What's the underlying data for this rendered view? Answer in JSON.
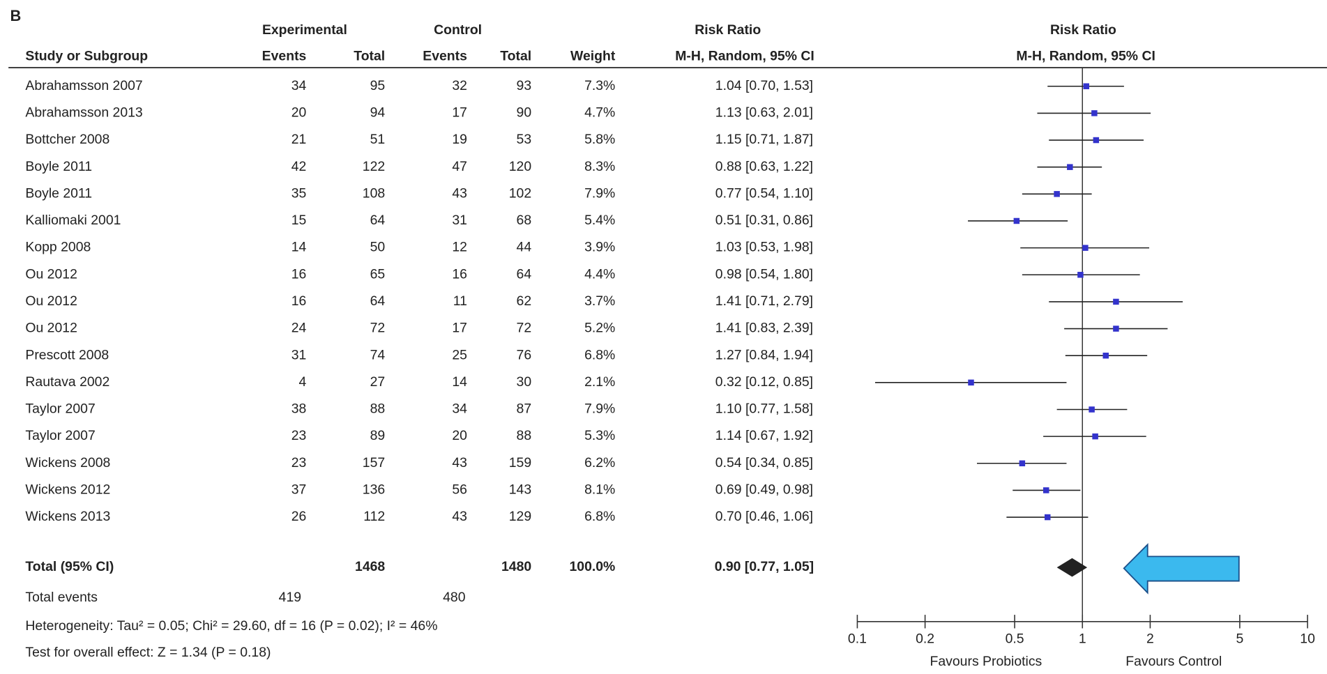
{
  "chart_data": {
    "type": "forest",
    "panel_label": "B",
    "headers": {
      "experimental": "Experimental",
      "control": "Control",
      "risk_ratio": "Risk Ratio",
      "risk_ratio_plot": "Risk Ratio",
      "study": "Study or Subgroup",
      "exp_events": "Events",
      "exp_total": "Total",
      "ctl_events": "Events",
      "ctl_total": "Total",
      "weight": "Weight",
      "method": "M-H, Random, 95% CI",
      "method_plot": "M-H, Random, 95% CI"
    },
    "studies": [
      {
        "name": "Abrahamsson 2007",
        "exp_events": 34,
        "exp_total": 95,
        "ctl_events": 32,
        "ctl_total": 93,
        "weight": "7.3%",
        "ci_label": "1.04 [0.70, 1.53]",
        "rr": 1.04,
        "ci_low": 0.7,
        "ci_high": 1.53
      },
      {
        "name": "Abrahamsson 2013",
        "exp_events": 20,
        "exp_total": 94,
        "ctl_events": 17,
        "ctl_total": 90,
        "weight": "4.7%",
        "ci_label": "1.13 [0.63, 2.01]",
        "rr": 1.13,
        "ci_low": 0.63,
        "ci_high": 2.01
      },
      {
        "name": "Bottcher 2008",
        "exp_events": 21,
        "exp_total": 51,
        "ctl_events": 19,
        "ctl_total": 53,
        "weight": "5.8%",
        "ci_label": "1.15 [0.71, 1.87]",
        "rr": 1.15,
        "ci_low": 0.71,
        "ci_high": 1.87
      },
      {
        "name": "Boyle 2011",
        "exp_events": 42,
        "exp_total": 122,
        "ctl_events": 47,
        "ctl_total": 120,
        "weight": "8.3%",
        "ci_label": "0.88 [0.63, 1.22]",
        "rr": 0.88,
        "ci_low": 0.63,
        "ci_high": 1.22
      },
      {
        "name": "Boyle 2011",
        "exp_events": 35,
        "exp_total": 108,
        "ctl_events": 43,
        "ctl_total": 102,
        "weight": "7.9%",
        "ci_label": "0.77 [0.54, 1.10]",
        "rr": 0.77,
        "ci_low": 0.54,
        "ci_high": 1.1
      },
      {
        "name": "Kalliomaki 2001",
        "exp_events": 15,
        "exp_total": 64,
        "ctl_events": 31,
        "ctl_total": 68,
        "weight": "5.4%",
        "ci_label": "0.51 [0.31, 0.86]",
        "rr": 0.51,
        "ci_low": 0.31,
        "ci_high": 0.86
      },
      {
        "name": "Kopp 2008",
        "exp_events": 14,
        "exp_total": 50,
        "ctl_events": 12,
        "ctl_total": 44,
        "weight": "3.9%",
        "ci_label": "1.03 [0.53, 1.98]",
        "rr": 1.03,
        "ci_low": 0.53,
        "ci_high": 1.98
      },
      {
        "name": "Ou 2012",
        "exp_events": 16,
        "exp_total": 65,
        "ctl_events": 16,
        "ctl_total": 64,
        "weight": "4.4%",
        "ci_label": "0.98 [0.54, 1.80]",
        "rr": 0.98,
        "ci_low": 0.54,
        "ci_high": 1.8
      },
      {
        "name": "Ou 2012",
        "exp_events": 16,
        "exp_total": 64,
        "ctl_events": 11,
        "ctl_total": 62,
        "weight": "3.7%",
        "ci_label": "1.41 [0.71, 2.79]",
        "rr": 1.41,
        "ci_low": 0.71,
        "ci_high": 2.79
      },
      {
        "name": "Ou 2012",
        "exp_events": 24,
        "exp_total": 72,
        "ctl_events": 17,
        "ctl_total": 72,
        "weight": "5.2%",
        "ci_label": "1.41 [0.83, 2.39]",
        "rr": 1.41,
        "ci_low": 0.83,
        "ci_high": 2.39
      },
      {
        "name": "Prescott 2008",
        "exp_events": 31,
        "exp_total": 74,
        "ctl_events": 25,
        "ctl_total": 76,
        "weight": "6.8%",
        "ci_label": "1.27 [0.84, 1.94]",
        "rr": 1.27,
        "ci_low": 0.84,
        "ci_high": 1.94
      },
      {
        "name": "Rautava 2002",
        "exp_events": 4,
        "exp_total": 27,
        "ctl_events": 14,
        "ctl_total": 30,
        "weight": "2.1%",
        "ci_label": "0.32 [0.12, 0.85]",
        "rr": 0.32,
        "ci_low": 0.12,
        "ci_high": 0.85
      },
      {
        "name": "Taylor 2007",
        "exp_events": 38,
        "exp_total": 88,
        "ctl_events": 34,
        "ctl_total": 87,
        "weight": "7.9%",
        "ci_label": "1.10 [0.77, 1.58]",
        "rr": 1.1,
        "ci_low": 0.77,
        "ci_high": 1.58
      },
      {
        "name": "Taylor 2007",
        "exp_events": 23,
        "exp_total": 89,
        "ctl_events": 20,
        "ctl_total": 88,
        "weight": "5.3%",
        "ci_label": "1.14 [0.67, 1.92]",
        "rr": 1.14,
        "ci_low": 0.67,
        "ci_high": 1.92
      },
      {
        "name": "Wickens 2008",
        "exp_events": 23,
        "exp_total": 157,
        "ctl_events": 43,
        "ctl_total": 159,
        "weight": "6.2%",
        "ci_label": "0.54 [0.34, 0.85]",
        "rr": 0.54,
        "ci_low": 0.34,
        "ci_high": 0.85
      },
      {
        "name": "Wickens 2012",
        "exp_events": 37,
        "exp_total": 136,
        "ctl_events": 56,
        "ctl_total": 143,
        "weight": "8.1%",
        "ci_label": "0.69 [0.49, 0.98]",
        "rr": 0.69,
        "ci_low": 0.49,
        "ci_high": 0.98
      },
      {
        "name": "Wickens 2013",
        "exp_events": 26,
        "exp_total": 112,
        "ctl_events": 43,
        "ctl_total": 129,
        "weight": "6.8%",
        "ci_label": "0.70 [0.46, 1.06]",
        "rr": 0.7,
        "ci_low": 0.46,
        "ci_high": 1.06
      }
    ],
    "total": {
      "name": "Total (95% CI)",
      "exp_total": 1468,
      "ctl_total": 1480,
      "weight": "100.0%",
      "ci_label": "0.90 [0.77, 1.05]",
      "rr": 0.9,
      "ci_low": 0.77,
      "ci_high": 1.05
    },
    "total_events": {
      "name": "Total events",
      "exp_events": 419,
      "ctl_events": 480
    },
    "heterogeneity": "Heterogeneity: Tau² = 0.05; Chi² = 29.60, df = 16 (P = 0.02); I² = 46%",
    "overall_effect": "Test for overall effect: Z = 1.34 (P = 0.18)",
    "xlabel_left": "Favours Probiotics",
    "xlabel_right": "Favours Control",
    "log_x": true,
    "xlim": [
      0.1,
      10
    ],
    "xticks": [
      0.1,
      0.2,
      0.5,
      1,
      2,
      5,
      10
    ],
    "point_color": "#3333cc",
    "diamond_color": "#222222"
  }
}
